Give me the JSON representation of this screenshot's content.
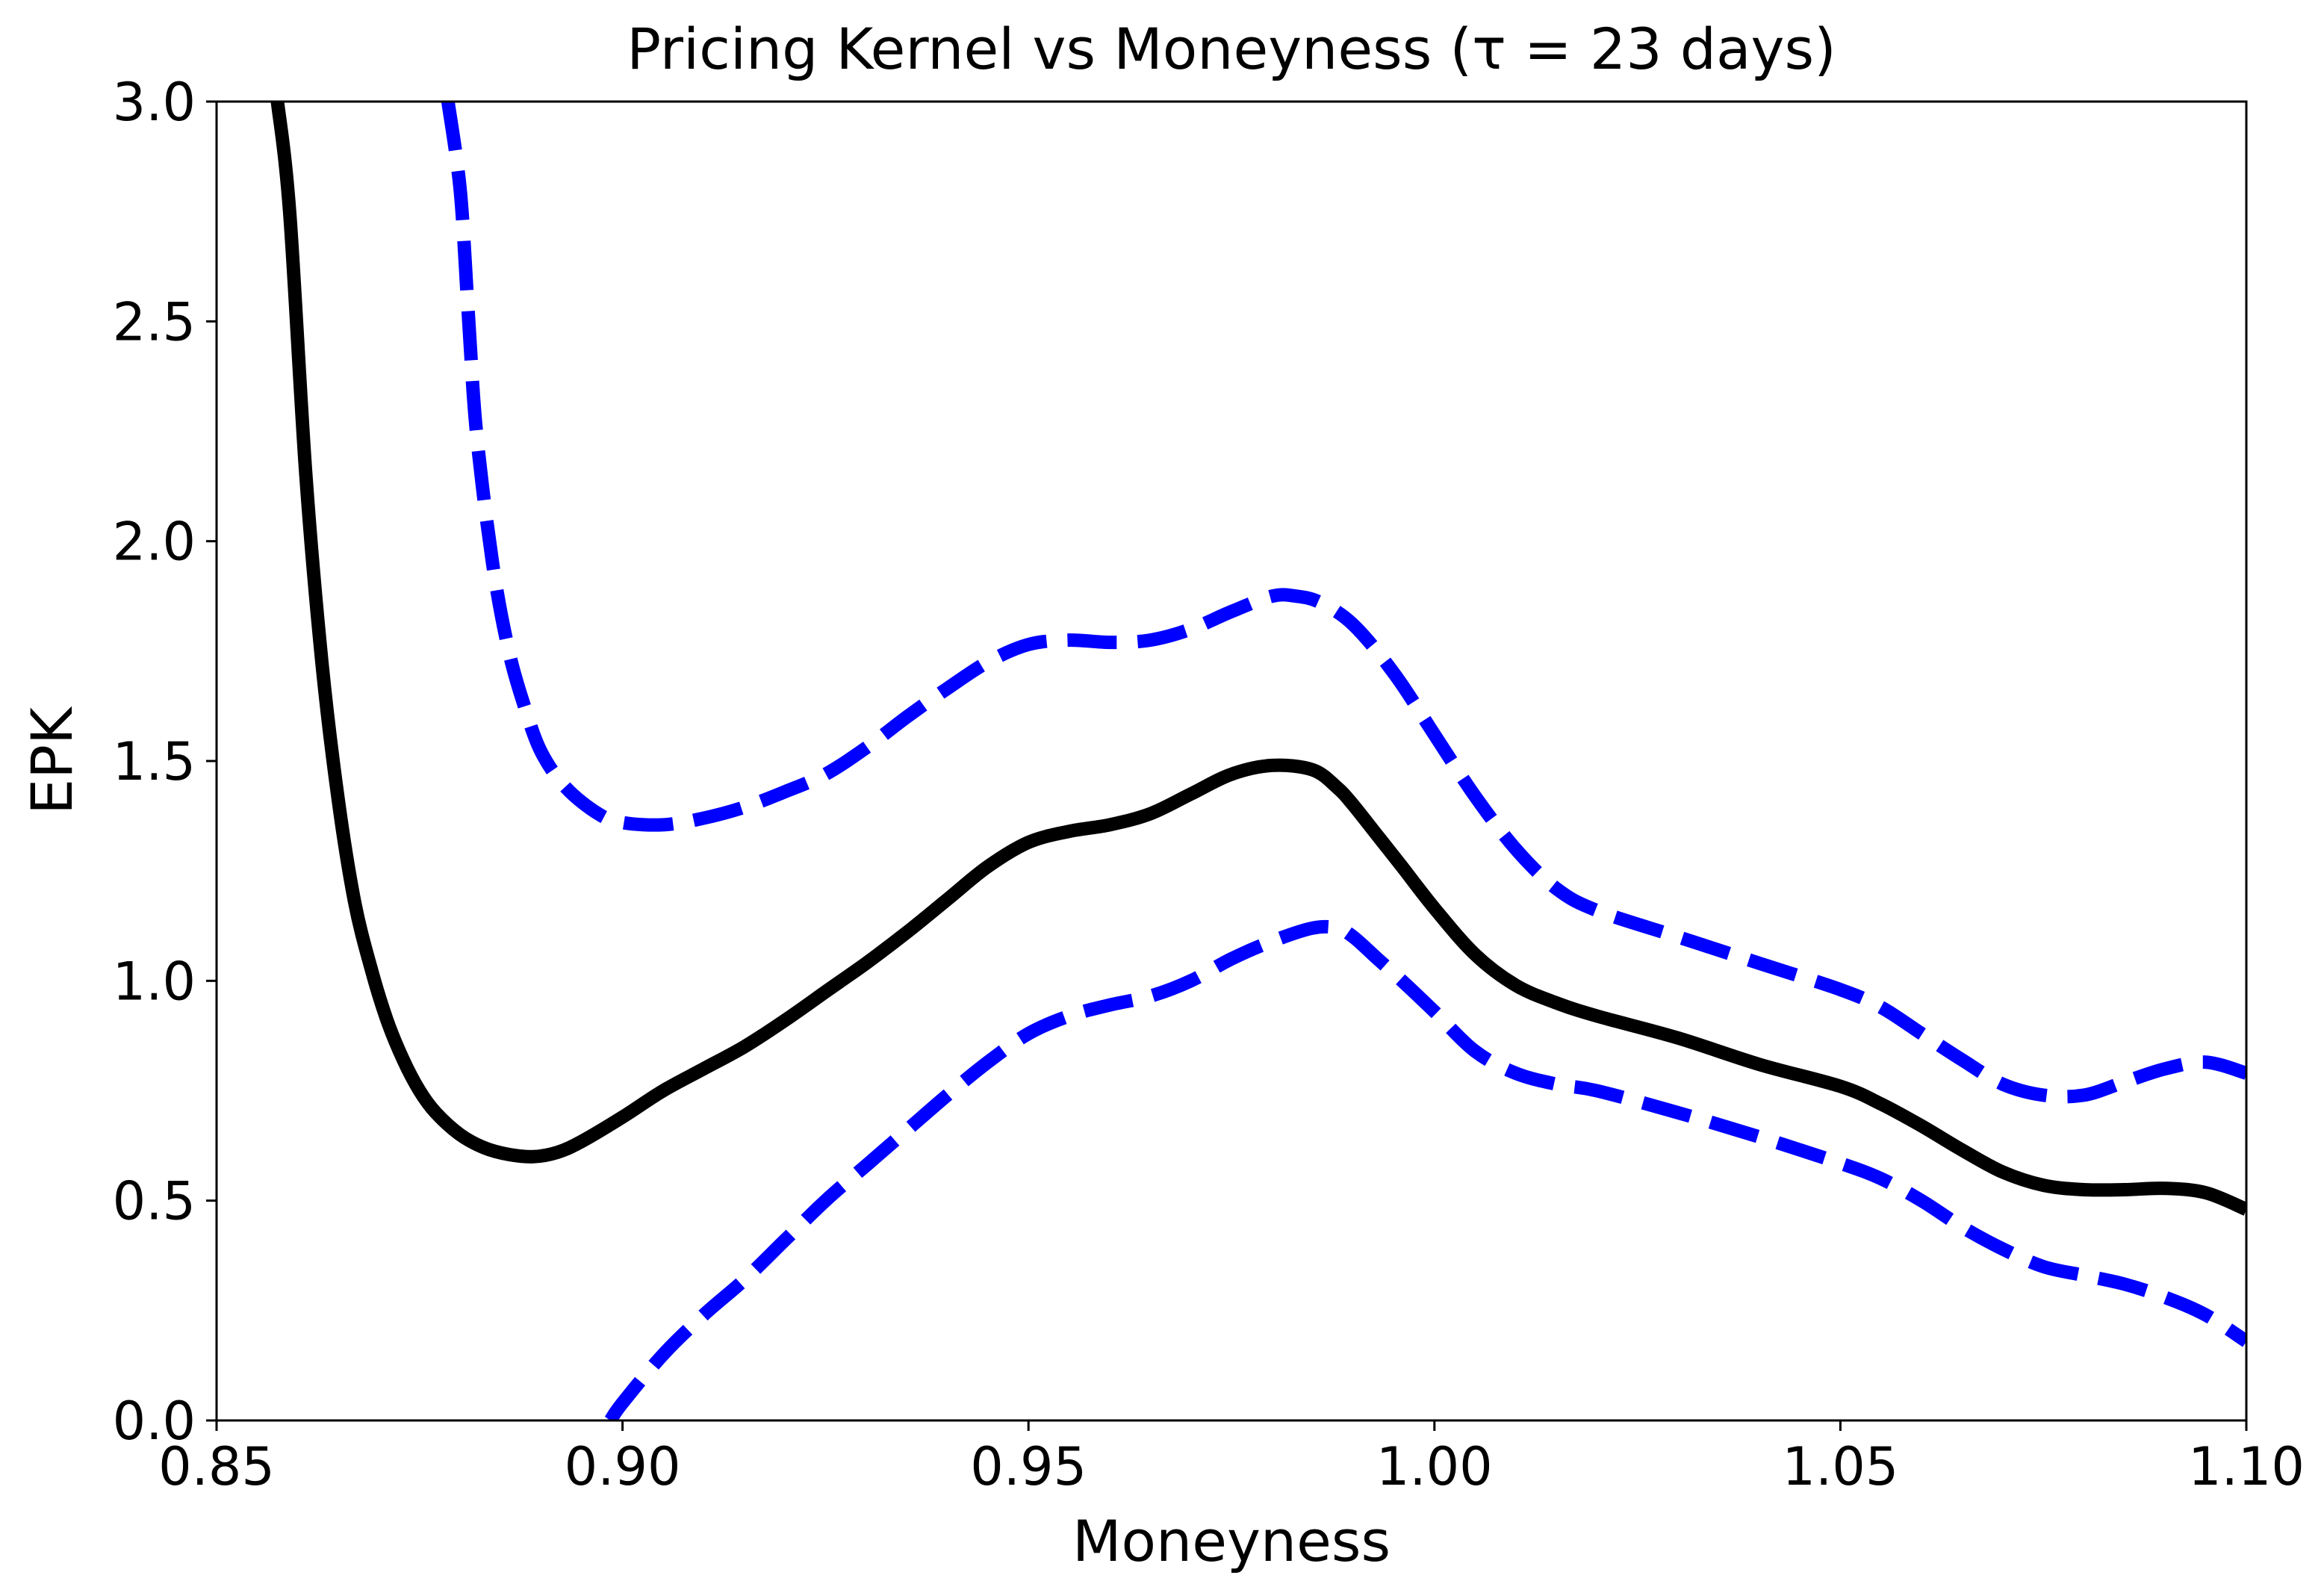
{
  "chart_data": {
    "type": "line",
    "title": "Pricing Kernel vs Moneyness (τ = 23 days)",
    "xlabel": "Moneyness",
    "ylabel": "EPK",
    "xlim": [
      0.85,
      1.1
    ],
    "ylim": [
      0.0,
      3.0
    ],
    "xticks": [
      0.85,
      0.9,
      0.95,
      1.0,
      1.05,
      1.1
    ],
    "xtick_labels": [
      "0.85",
      "0.90",
      "0.95",
      "1.00",
      "1.05",
      "1.10"
    ],
    "yticks": [
      0.0,
      0.5,
      1.0,
      1.5,
      2.0,
      2.5,
      3.0
    ],
    "ytick_labels": [
      "0.0",
      "0.5",
      "1.0",
      "1.5",
      "2.0",
      "2.5",
      "3.0"
    ],
    "grid": false,
    "legend": false,
    "series": [
      {
        "style": "solid",
        "color": "#000000",
        "x": [
          0.8575,
          0.859,
          0.861,
          0.863,
          0.865,
          0.867,
          0.869,
          0.871,
          0.873,
          0.875,
          0.877,
          0.88,
          0.883,
          0.886,
          0.889,
          0.892,
          0.895,
          0.9,
          0.905,
          0.91,
          0.915,
          0.92,
          0.925,
          0.93,
          0.935,
          0.94,
          0.945,
          0.95,
          0.955,
          0.96,
          0.965,
          0.97,
          0.975,
          0.98,
          0.985,
          0.988,
          0.99,
          0.993,
          0.996,
          1.0,
          1.005,
          1.01,
          1.015,
          1.02,
          1.03,
          1.04,
          1.05,
          1.055,
          1.06,
          1.065,
          1.07,
          1.075,
          1.08,
          1.085,
          1.09,
          1.095,
          1.1
        ],
        "y": [
          3.0,
          2.75,
          2.15,
          1.72,
          1.41,
          1.18,
          1.03,
          0.91,
          0.82,
          0.75,
          0.7,
          0.65,
          0.62,
          0.605,
          0.6,
          0.61,
          0.635,
          0.69,
          0.75,
          0.8,
          0.85,
          0.91,
          0.975,
          1.04,
          1.11,
          1.185,
          1.26,
          1.315,
          1.34,
          1.355,
          1.38,
          1.425,
          1.47,
          1.49,
          1.48,
          1.44,
          1.4,
          1.33,
          1.26,
          1.165,
          1.06,
          0.99,
          0.95,
          0.92,
          0.87,
          0.81,
          0.76,
          0.72,
          0.67,
          0.615,
          0.565,
          0.535,
          0.525,
          0.525,
          0.528,
          0.518,
          0.48
        ]
      },
      {
        "style": "dashed",
        "color": "#0000ff",
        "x": [
          0.8785,
          0.88,
          0.881,
          0.882,
          0.884,
          0.886,
          0.888,
          0.89,
          0.893,
          0.897,
          0.9,
          0.905,
          0.91,
          0.915,
          0.92,
          0.925,
          0.93,
          0.935,
          0.94,
          0.945,
          0.95,
          0.955,
          0.96,
          0.965,
          0.97,
          0.975,
          0.98,
          0.983,
          0.986,
          0.99,
          0.995,
          1.0,
          1.005,
          1.01,
          1.015,
          1.02,
          1.03,
          1.04,
          1.05,
          1.055,
          1.06,
          1.065,
          1.07,
          1.075,
          1.08,
          1.085,
          1.09,
          1.095,
          1.1
        ],
        "y": [
          3.0,
          2.8,
          2.52,
          2.25,
          1.95,
          1.75,
          1.62,
          1.52,
          1.44,
          1.38,
          1.36,
          1.355,
          1.37,
          1.395,
          1.43,
          1.47,
          1.53,
          1.6,
          1.665,
          1.725,
          1.765,
          1.775,
          1.77,
          1.775,
          1.8,
          1.84,
          1.875,
          1.875,
          1.86,
          1.81,
          1.7,
          1.56,
          1.42,
          1.3,
          1.21,
          1.16,
          1.1,
          1.04,
          0.98,
          0.94,
          0.88,
          0.82,
          0.765,
          0.74,
          0.74,
          0.77,
          0.8,
          0.815,
          0.79
        ]
      },
      {
        "style": "dashed",
        "color": "#0000ff",
        "x": [
          0.8985,
          0.9,
          0.905,
          0.91,
          0.915,
          0.92,
          0.925,
          0.93,
          0.935,
          0.94,
          0.945,
          0.95,
          0.955,
          0.96,
          0.965,
          0.97,
          0.975,
          0.98,
          0.985,
          0.988,
          0.99,
          0.993,
          0.996,
          1.0,
          1.005,
          1.01,
          1.015,
          1.02,
          1.03,
          1.04,
          1.05,
          1.055,
          1.06,
          1.065,
          1.07,
          1.075,
          1.08,
          1.085,
          1.09,
          1.095,
          1.1
        ],
        "y": [
          0.0,
          0.04,
          0.15,
          0.24,
          0.32,
          0.41,
          0.5,
          0.58,
          0.66,
          0.74,
          0.815,
          0.88,
          0.92,
          0.945,
          0.965,
          1.0,
          1.05,
          1.09,
          1.12,
          1.12,
          1.1,
          1.05,
          1.0,
          0.93,
          0.84,
          0.79,
          0.765,
          0.75,
          0.7,
          0.645,
          0.585,
          0.55,
          0.5,
          0.44,
          0.39,
          0.35,
          0.33,
          0.31,
          0.28,
          0.24,
          0.18
        ]
      }
    ]
  }
}
